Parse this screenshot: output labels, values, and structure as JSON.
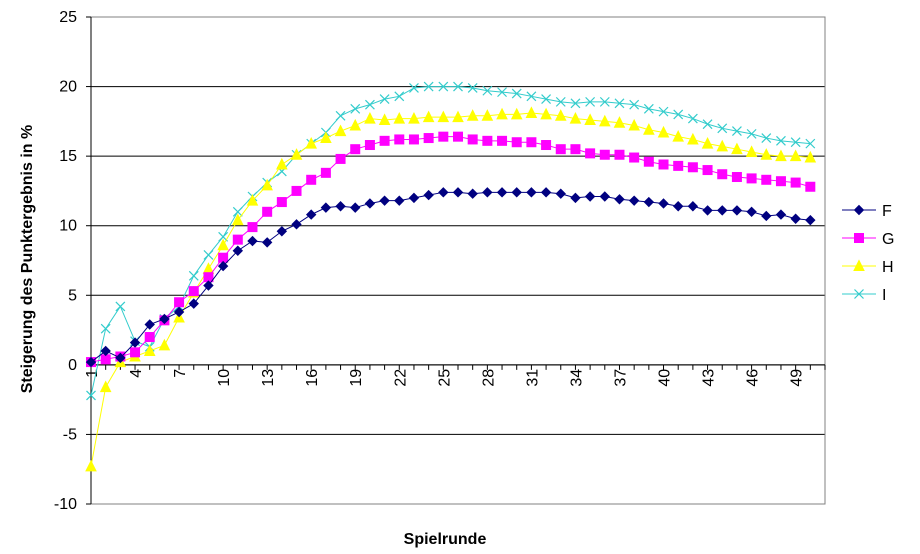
{
  "chart_data": {
    "type": "line",
    "xlabel": "Spielrunde",
    "ylabel": "Steigerung des Punktergebnis in %",
    "ylim": [
      -10,
      25
    ],
    "yticks": [
      -10,
      -5,
      0,
      5,
      10,
      15,
      20,
      25
    ],
    "x": [
      1,
      2,
      3,
      4,
      5,
      6,
      7,
      8,
      9,
      10,
      11,
      12,
      13,
      14,
      15,
      16,
      17,
      18,
      19,
      20,
      21,
      22,
      23,
      24,
      25,
      26,
      27,
      28,
      29,
      30,
      31,
      32,
      33,
      34,
      35,
      36,
      37,
      38,
      39,
      40,
      41,
      42,
      43,
      44,
      45,
      46,
      47,
      48,
      49,
      50
    ],
    "xtick_labels": [
      "1",
      "4",
      "7",
      "10",
      "13",
      "16",
      "19",
      "22",
      "25",
      "28",
      "31",
      "34",
      "37",
      "40",
      "43",
      "46",
      "49"
    ],
    "grid": "horizontal",
    "legend_position": "right",
    "series": [
      {
        "name": "F",
        "color": "#000080",
        "marker": "diamond",
        "values": [
          0.2,
          1.0,
          0.5,
          1.6,
          2.9,
          3.3,
          3.8,
          4.4,
          5.7,
          7.1,
          8.2,
          8.9,
          8.8,
          9.6,
          10.1,
          10.8,
          11.3,
          11.4,
          11.3,
          11.6,
          11.8,
          11.8,
          12.0,
          12.2,
          12.4,
          12.4,
          12.3,
          12.4,
          12.4,
          12.4,
          12.4,
          12.4,
          12.3,
          12.0,
          12.1,
          12.1,
          11.9,
          11.8,
          11.7,
          11.6,
          11.4,
          11.4,
          11.1,
          11.1,
          11.1,
          11.0,
          10.7,
          10.8,
          10.5,
          10.4
        ]
      },
      {
        "name": "G",
        "color": "#FF00FF",
        "marker": "square",
        "values": [
          0.2,
          0.4,
          0.6,
          0.9,
          2.0,
          3.2,
          4.5,
          5.3,
          6.3,
          7.7,
          9.0,
          9.9,
          11.0,
          11.7,
          12.5,
          13.3,
          13.8,
          14.8,
          15.5,
          15.8,
          16.1,
          16.2,
          16.2,
          16.3,
          16.4,
          16.4,
          16.2,
          16.1,
          16.1,
          16.0,
          16.0,
          15.8,
          15.5,
          15.5,
          15.2,
          15.1,
          15.1,
          14.9,
          14.6,
          14.4,
          14.3,
          14.2,
          14.0,
          13.7,
          13.5,
          13.4,
          13.3,
          13.2,
          13.1,
          12.8
        ]
      },
      {
        "name": "H",
        "color": "#FFFF00",
        "marker": "triangle",
        "values": [
          -7.3,
          -1.6,
          0.2,
          0.6,
          1.0,
          1.4,
          3.4,
          5.2,
          6.9,
          8.6,
          10.4,
          11.8,
          12.9,
          14.4,
          15.1,
          15.9,
          16.3,
          16.8,
          17.2,
          17.7,
          17.6,
          17.7,
          17.7,
          17.8,
          17.8,
          17.8,
          17.9,
          17.9,
          18.0,
          18.0,
          18.1,
          18.0,
          17.9,
          17.7,
          17.6,
          17.5,
          17.4,
          17.2,
          16.9,
          16.7,
          16.4,
          16.2,
          15.9,
          15.7,
          15.5,
          15.3,
          15.1,
          15.0,
          15.0,
          14.9
        ]
      },
      {
        "name": "I",
        "color": "#33CCCC",
        "marker": "x",
        "values": [
          -2.2,
          2.6,
          4.2,
          1.7,
          1.3,
          3.3,
          4.2,
          6.4,
          7.9,
          9.2,
          11.0,
          12.1,
          13.1,
          13.9,
          15.1,
          15.9,
          16.7,
          17.9,
          18.4,
          18.7,
          19.1,
          19.3,
          19.9,
          20.0,
          20.0,
          20.0,
          19.9,
          19.7,
          19.6,
          19.5,
          19.3,
          19.1,
          18.9,
          18.8,
          18.9,
          18.9,
          18.8,
          18.7,
          18.4,
          18.2,
          18.0,
          17.7,
          17.3,
          17.0,
          16.8,
          16.6,
          16.3,
          16.1,
          16.0,
          15.9
        ]
      }
    ]
  }
}
